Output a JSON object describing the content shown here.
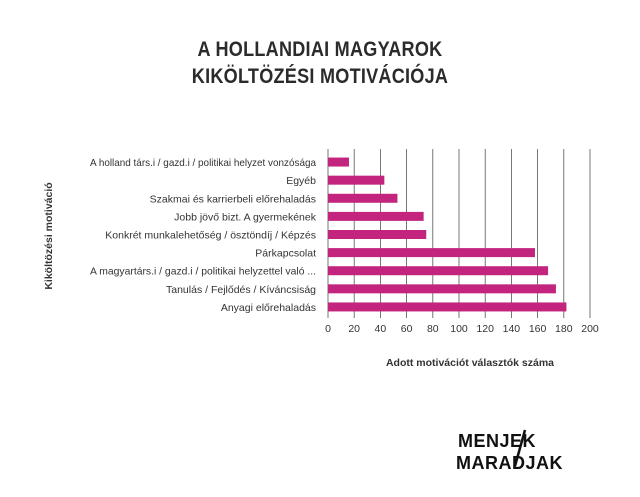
{
  "title_lines": [
    "A HOLLANDIAI MAGYAROK",
    "KIKÖLTÖZÉSI MOTIVÁCIÓJA"
  ],
  "logo": {
    "line1": "MENJEK",
    "line2": "MARADJAK"
  },
  "colors": {
    "bar": "#c2247e",
    "grid": "#555555",
    "text": "#333333"
  },
  "chart_data": {
    "type": "bar",
    "orientation": "horizontal",
    "title": "A HOLLANDIAI MAGYAROK KIKÖLTÖZÉSI MOTIVÁCIÓJA",
    "xlabel": "Adott motivációt választók száma",
    "ylabel": "Kiköltözési motiváció",
    "categories": [
      "A holland társ.i / gazd.i / politikai helyzet vonzósága",
      "Egyéb",
      "Szakmai és karrierbeli előrehaladás",
      "Jobb jövő bizt. A gyermekének",
      "Konkrét munkalehetőség / ösztöndíj / Képzés",
      "Párkapcsolat",
      "A magyartárs.i / gazd.i / politikai helyzettel való ...",
      "Tanulás / Fejlődés / Kíváncsiság",
      "Anyagi előrehaladás"
    ],
    "values": [
      16,
      43,
      53,
      73,
      75,
      158,
      168,
      174,
      182
    ],
    "xlim": [
      0,
      200
    ],
    "xticks": [
      "0",
      "20",
      "40",
      "60",
      "80",
      "100",
      "120",
      "140",
      "160",
      "180",
      "200"
    ],
    "grid": true,
    "legend": "none"
  }
}
